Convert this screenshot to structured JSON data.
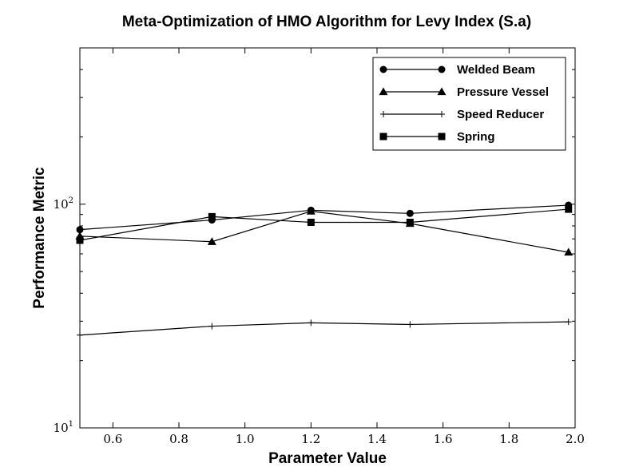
{
  "chart_data": {
    "type": "line",
    "title": "Meta-Optimization of HMO Algorithm for Levy Index (S.a)",
    "xlabel": "Parameter Value",
    "ylabel": "Performance Metric",
    "xlim": [
      0.5,
      2.0
    ],
    "ylim": [
      10,
      500
    ],
    "yscale": "log",
    "grid": false,
    "legend_position": "top-right",
    "x_ticks": [
      "0.6",
      "0.8",
      "1.0",
      "1.2",
      "1.4",
      "1.6",
      "1.8",
      "2.0"
    ],
    "y_ticks": [
      {
        "value": 10,
        "base": "10",
        "exp": "1"
      },
      {
        "value": 100,
        "base": "10",
        "exp": "2"
      }
    ],
    "x": [
      0.5,
      0.9,
      1.2,
      1.5,
      1.98
    ],
    "series": [
      {
        "name": "Welded Beam",
        "marker": "circle",
        "values": [
          77,
          85,
          94,
          91,
          99
        ]
      },
      {
        "name": "Pressure Vessel",
        "marker": "triangle",
        "values": [
          72,
          68,
          93,
          82,
          61
        ]
      },
      {
        "name": "Speed Reducer",
        "marker": "plus",
        "values": [
          26,
          28.5,
          29.5,
          29,
          29.8
        ]
      },
      {
        "name": "Spring",
        "marker": "square",
        "values": [
          69,
          88,
          83,
          83,
          95
        ]
      }
    ]
  }
}
